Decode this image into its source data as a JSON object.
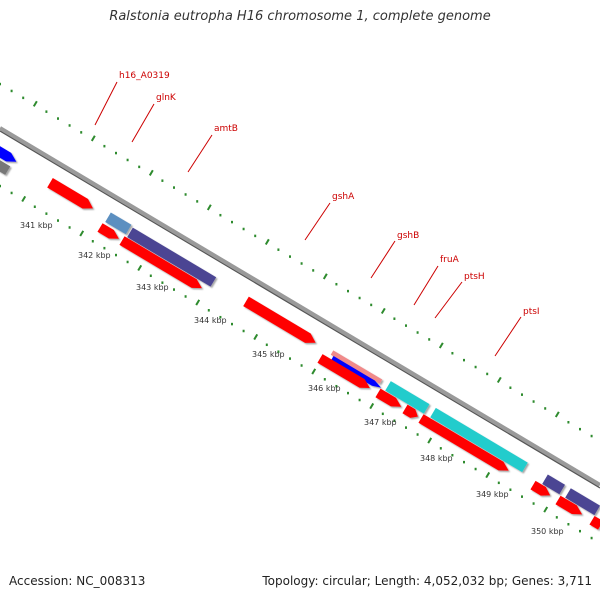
{
  "title": "Ralstonia eutropha H16 chromosome 1, complete genome",
  "footer": {
    "accession": "Accession: NC_008313",
    "summary": "Topology: circular; Length: 4,052,032 bp; Genes: 3,711"
  },
  "colors": {
    "backbone": "#9a9a9a",
    "tick": "#2e8b2e",
    "label": "#cc0000",
    "gene_red": "#ff0000",
    "gene_purple": "#4b4593",
    "gene_steelblue": "#5b8fc0",
    "gene_blue": "#0000ff",
    "gene_pink": "#f08a8a",
    "gene_cyan": "#22cccc",
    "gene_gray": "#777777"
  },
  "kbp_labels": [
    "341 kbp",
    "342 kbp",
    "343 kbp",
    "344 kbp",
    "345 kbp",
    "346 kbp",
    "347 kbp",
    "348 kbp",
    "349 kbp",
    "350 kbp"
  ],
  "gene_labels": [
    "h16_A0319",
    "glnK",
    "amtB",
    "gshA",
    "gshB",
    "fruA",
    "ptsH",
    "ptsI"
  ]
}
